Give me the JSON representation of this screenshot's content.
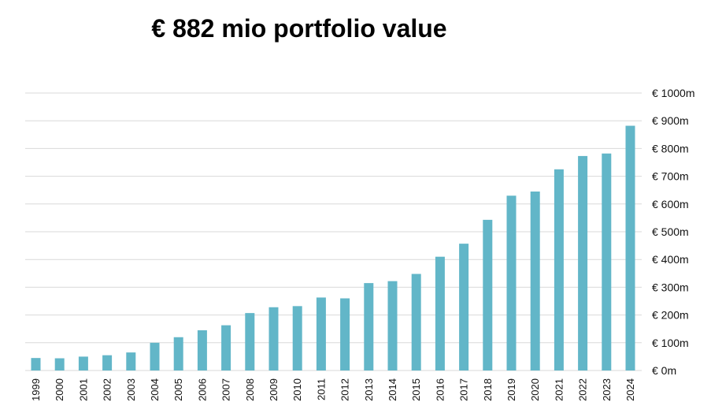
{
  "title": "€ 882 mio portfolio value",
  "chart_data": {
    "type": "bar",
    "categories": [
      "1999",
      "2000",
      "2001",
      "2002",
      "2003",
      "2004",
      "2005",
      "2006",
      "2007",
      "2008",
      "2009",
      "2010",
      "2011",
      "2012",
      "2013",
      "2014",
      "2015",
      "2016",
      "2017",
      "2018",
      "2019",
      "2020",
      "2021",
      "2022",
      "2023",
      "2024"
    ],
    "values": [
      45,
      44,
      50,
      55,
      65,
      100,
      120,
      145,
      163,
      207,
      228,
      232,
      263,
      260,
      315,
      322,
      348,
      410,
      457,
      543,
      630,
      645,
      725,
      773,
      782,
      882
    ],
    "ylim": [
      0,
      1000
    ],
    "yticks": [
      0,
      100,
      200,
      300,
      400,
      500,
      600,
      700,
      800,
      900,
      1000
    ],
    "ytick_labels": [
      "€ 0m",
      "€ 100m",
      "€ 200m",
      "€ 300m",
      "€ 400m",
      "€ 500m",
      "€ 600m",
      "€ 700m",
      "€ 800m",
      "€ 900m",
      "€ 1000m"
    ],
    "y_axis_position": "right",
    "grid": true,
    "bar_color": "#62b6c8",
    "grid_color": "#d9d9d9"
  }
}
